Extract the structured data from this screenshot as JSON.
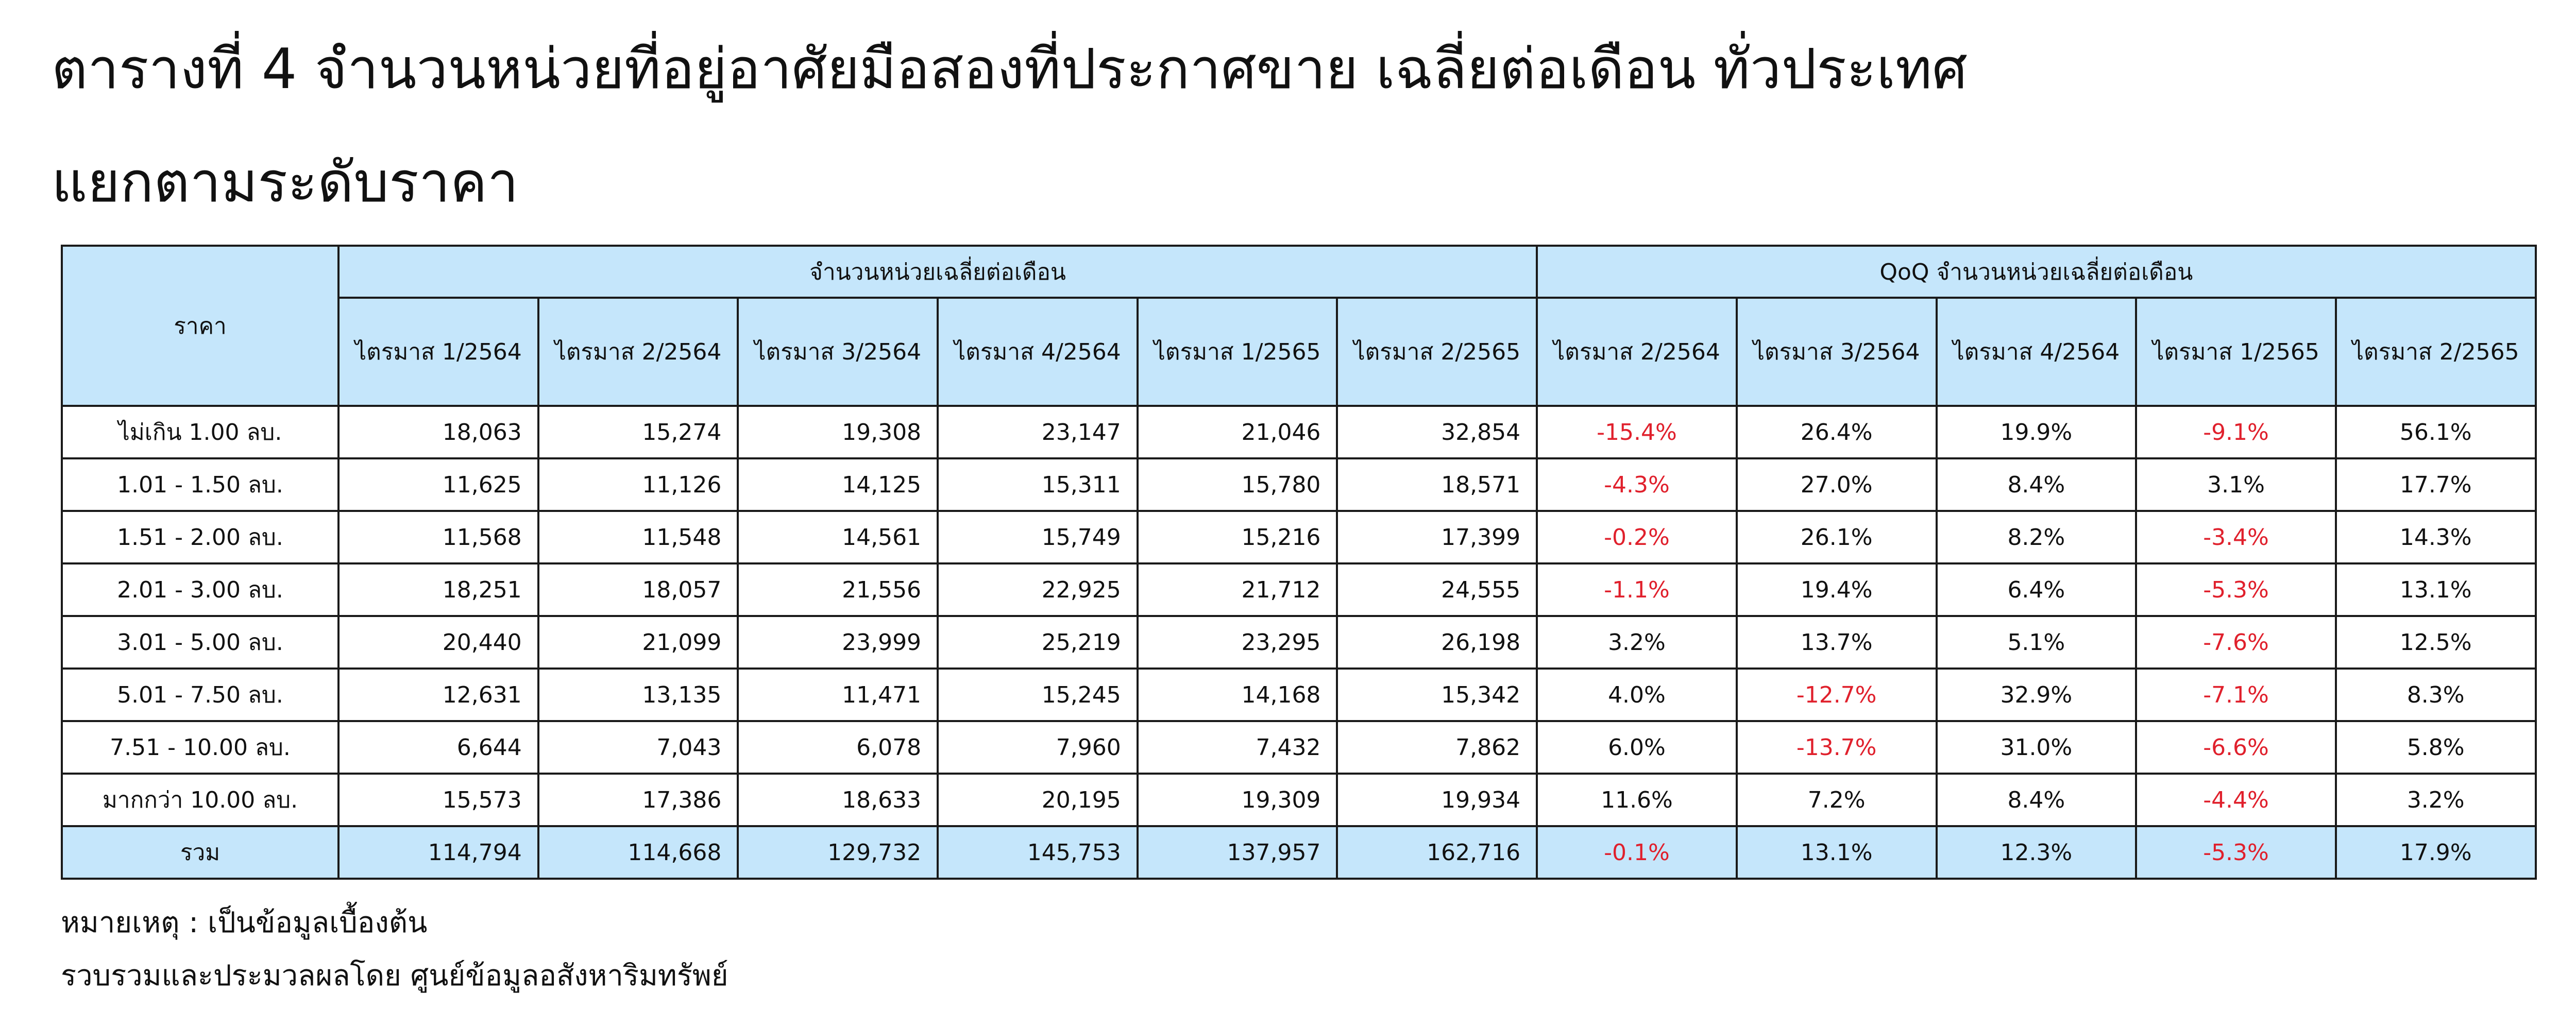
{
  "title_line1": "ตารางที่ 4 จำนวนหน่วยที่อยู่อาศัยมือสองที่ประกาศขาย เฉลี่ยต่อเดือน ทั่วประเทศ",
  "title_line2": "แยกตามระดับราคา",
  "table": {
    "corner_header": "ราคา",
    "group_units": "จำนวนหน่วยเฉลี่ยต่อเดือน",
    "group_qoq": "QoQ จำนวนหน่วยเฉลี่ยต่อเดือน",
    "unit_quarters": [
      "ไตรมาส 1/2564",
      "ไตรมาส 2/2564",
      "ไตรมาส 3/2564",
      "ไตรมาส 4/2564",
      "ไตรมาส 1/2565",
      "ไตรมาส 2/2565"
    ],
    "qoq_quarters": [
      "ไตรมาส 2/2564",
      "ไตรมาส 3/2564",
      "ไตรมาส 4/2564",
      "ไตรมาส 1/2565",
      "ไตรมาส 2/2565"
    ],
    "rows": [
      {
        "label": "ไม่เกิน 1.00 ลบ.",
        "units": [
          "18,063",
          "15,274",
          "19,308",
          "23,147",
          "21,046",
          "32,854"
        ],
        "qoq": [
          "-15.4%",
          "26.4%",
          "19.9%",
          "-9.1%",
          "56.1%"
        ]
      },
      {
        "label": "1.01 - 1.50 ลบ.",
        "units": [
          "11,625",
          "11,126",
          "14,125",
          "15,311",
          "15,780",
          "18,571"
        ],
        "qoq": [
          "-4.3%",
          "27.0%",
          "8.4%",
          "3.1%",
          "17.7%"
        ]
      },
      {
        "label": "1.51 - 2.00 ลบ.",
        "units": [
          "11,568",
          "11,548",
          "14,561",
          "15,749",
          "15,216",
          "17,399"
        ],
        "qoq": [
          "-0.2%",
          "26.1%",
          "8.2%",
          "-3.4%",
          "14.3%"
        ]
      },
      {
        "label": "2.01 - 3.00 ลบ.",
        "units": [
          "18,251",
          "18,057",
          "21,556",
          "22,925",
          "21,712",
          "24,555"
        ],
        "qoq": [
          "-1.1%",
          "19.4%",
          "6.4%",
          "-5.3%",
          "13.1%"
        ]
      },
      {
        "label": "3.01 - 5.00 ลบ.",
        "units": [
          "20,440",
          "21,099",
          "23,999",
          "25,219",
          "23,295",
          "26,198"
        ],
        "qoq": [
          "3.2%",
          "13.7%",
          "5.1%",
          "-7.6%",
          "12.5%"
        ]
      },
      {
        "label": "5.01 - 7.50 ลบ.",
        "units": [
          "12,631",
          "13,135",
          "11,471",
          "15,245",
          "14,168",
          "15,342"
        ],
        "qoq": [
          "4.0%",
          "-12.7%",
          "32.9%",
          "-7.1%",
          "8.3%"
        ]
      },
      {
        "label": "7.51 - 10.00 ลบ.",
        "units": [
          "6,644",
          "7,043",
          "6,078",
          "7,960",
          "7,432",
          "7,862"
        ],
        "qoq": [
          "6.0%",
          "-13.7%",
          "31.0%",
          "-6.6%",
          "5.8%"
        ]
      },
      {
        "label": "มากกว่า 10.00 ลบ.",
        "units": [
          "15,573",
          "17,386",
          "18,633",
          "20,195",
          "19,309",
          "19,934"
        ],
        "qoq": [
          "11.6%",
          "7.2%",
          "8.4%",
          "-4.4%",
          "3.2%"
        ]
      }
    ],
    "total": {
      "label": "รวม",
      "units": [
        "114,794",
        "114,668",
        "129,732",
        "145,753",
        "137,957",
        "162,716"
      ],
      "qoq": [
        "-0.1%",
        "13.1%",
        "12.3%",
        "-5.3%",
        "17.9%"
      ]
    }
  },
  "note_line1": "หมายเหตุ : เป็นข้อมูลเบื้องต้น",
  "note_line2": "รวบรวมและประมวลผลโดย ศูนย์ข้อมูลอสังหาริมทรัพย์",
  "colors": {
    "header_bg": "#c5e6fb",
    "negative_text": "#e0202c"
  }
}
